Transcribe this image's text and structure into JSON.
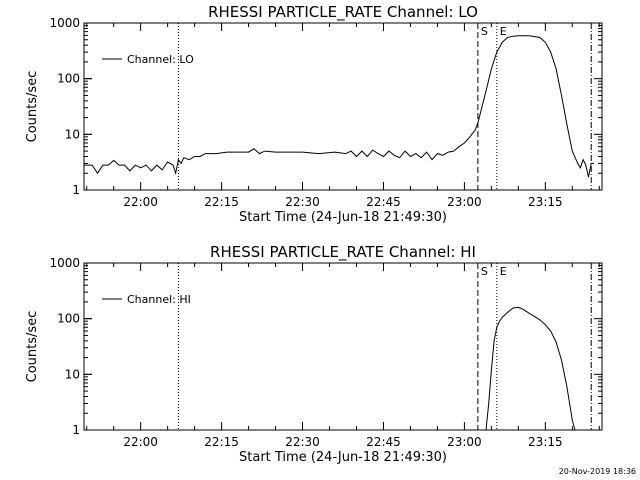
{
  "footer": {
    "timestamp": "20-Nov-2019 18:36"
  },
  "chart_data": [
    {
      "type": "line",
      "title": "RHESSI PARTICLE_RATE Channel: LO",
      "xlabel": "Start Time (24-Jun-18 21:49:30)",
      "ylabel": "Counts/sec",
      "y_scale": "log",
      "xlim": [
        "21:49:30",
        "23:25:30"
      ],
      "ylim": [
        1,
        1000
      ],
      "x_ticks": [
        "22:00",
        "22:15",
        "22:30",
        "22:45",
        "23:00",
        "23:15"
      ],
      "y_ticks": [
        "1",
        "10",
        "100",
        "1000"
      ],
      "legend": "top-left",
      "markers": [
        {
          "label": "",
          "time": "22:07:00",
          "style": "dotted"
        },
        {
          "label": "S",
          "time": "23:02:30",
          "style": "dashed"
        },
        {
          "label": "E",
          "time": "23:06:00",
          "style": "dotted"
        },
        {
          "label": "",
          "time": "23:23:30",
          "style": "dashdot"
        }
      ],
      "series": [
        {
          "name": "Channel: LO",
          "x": [
            "21:49:30",
            "21:51:00",
            "21:52:00",
            "21:53:00",
            "21:54:00",
            "21:55:00",
            "21:56:00",
            "21:57:00",
            "21:58:00",
            "21:59:00",
            "22:00:00",
            "22:01:00",
            "22:02:00",
            "22:03:00",
            "22:04:00",
            "22:05:00",
            "22:06:00",
            "22:06:30",
            "22:07:00",
            "22:07:30",
            "22:08:00",
            "22:09:00",
            "22:10:00",
            "22:11:00",
            "22:12:00",
            "22:14:00",
            "22:16:00",
            "22:18:00",
            "22:20:00",
            "22:21:00",
            "22:22:00",
            "22:23:00",
            "22:25:00",
            "22:27:00",
            "22:30:00",
            "22:33:00",
            "22:36:00",
            "22:38:00",
            "22:39:00",
            "22:40:00",
            "22:41:00",
            "22:42:00",
            "22:43:00",
            "22:44:00",
            "22:45:00",
            "22:46:00",
            "22:47:00",
            "22:48:00",
            "22:49:00",
            "22:50:00",
            "22:51:00",
            "22:52:00",
            "22:53:00",
            "22:54:00",
            "22:55:00",
            "22:56:00",
            "22:57:00",
            "22:58:00",
            "22:59:00",
            "23:00:00",
            "23:01:00",
            "23:02:00",
            "23:02:30",
            "23:03:00",
            "23:04:00",
            "23:05:00",
            "23:06:00",
            "23:07:00",
            "23:08:00",
            "23:09:00",
            "23:10:00",
            "23:12:00",
            "23:14:00",
            "23:15:00",
            "23:16:00",
            "23:17:00",
            "23:18:00",
            "23:19:00",
            "23:20:00",
            "23:21:00",
            "23:21:30",
            "23:22:00",
            "23:22:30",
            "23:23:00",
            "23:23:30",
            "23:24:00"
          ],
          "y": [
            2.8,
            2.8,
            2.0,
            2.8,
            2.8,
            3.4,
            2.8,
            2.8,
            2.2,
            2.8,
            2.5,
            2.8,
            2.2,
            2.8,
            2.3,
            3.2,
            2.8,
            2.0,
            3.5,
            3.0,
            3.8,
            3.5,
            4.0,
            4.0,
            4.5,
            4.5,
            4.8,
            4.8,
            4.8,
            5.5,
            4.5,
            5.0,
            4.8,
            4.8,
            4.8,
            4.5,
            4.8,
            4.5,
            5.0,
            4.0,
            5.0,
            4.0,
            5.2,
            4.5,
            4.0,
            5.0,
            4.2,
            3.8,
            5.0,
            4.0,
            4.5,
            3.8,
            4.8,
            3.5,
            4.5,
            4.2,
            4.8,
            5.0,
            6.0,
            7.0,
            9.0,
            12.0,
            16.0,
            25.0,
            60.0,
            150.0,
            300.0,
            450.0,
            550.0,
            580.0,
            590.0,
            590.0,
            550.0,
            450.0,
            300.0,
            150.0,
            50.0,
            15.0,
            5.0,
            3.0,
            2.5,
            3.5,
            2.8,
            1.7,
            3.0,
            3.0
          ]
        }
      ]
    },
    {
      "type": "line",
      "title": "RHESSI PARTICLE_RATE Channel: HI",
      "xlabel": "Start Time (24-Jun-18 21:49:30)",
      "ylabel": "Counts/sec",
      "y_scale": "log",
      "xlim": [
        "21:49:30",
        "23:25:30"
      ],
      "ylim": [
        1,
        1000
      ],
      "x_ticks": [
        "22:00",
        "22:15",
        "22:30",
        "22:45",
        "23:00",
        "23:15"
      ],
      "y_ticks": [
        "1",
        "10",
        "100",
        "1000"
      ],
      "legend": "top-left",
      "markers": [
        {
          "label": "",
          "time": "22:07:00",
          "style": "dotted"
        },
        {
          "label": "S",
          "time": "23:02:30",
          "style": "dashed"
        },
        {
          "label": "E",
          "time": "23:06:00",
          "style": "dotted"
        },
        {
          "label": "",
          "time": "23:23:30",
          "style": "dashdot"
        }
      ],
      "series": [
        {
          "name": "Channel: HI",
          "x": [
            "23:04:00",
            "23:04:30",
            "23:05:00",
            "23:05:30",
            "23:06:00",
            "23:06:30",
            "23:07:00",
            "23:08:00",
            "23:09:00",
            "23:10:00",
            "23:11:00",
            "23:12:00",
            "23:13:00",
            "23:14:00",
            "23:15:00",
            "23:16:00",
            "23:17:00",
            "23:18:00",
            "23:19:00",
            "23:19:30",
            "23:20:00",
            "23:20:30"
          ],
          "y": [
            1.0,
            3.0,
            12.0,
            40.0,
            70.0,
            90.0,
            105.0,
            130.0,
            155.0,
            160.0,
            145.0,
            125.0,
            110.0,
            95.0,
            78.0,
            60.0,
            38.0,
            18.0,
            6.0,
            3.0,
            1.5,
            1.0
          ]
        }
      ]
    }
  ]
}
